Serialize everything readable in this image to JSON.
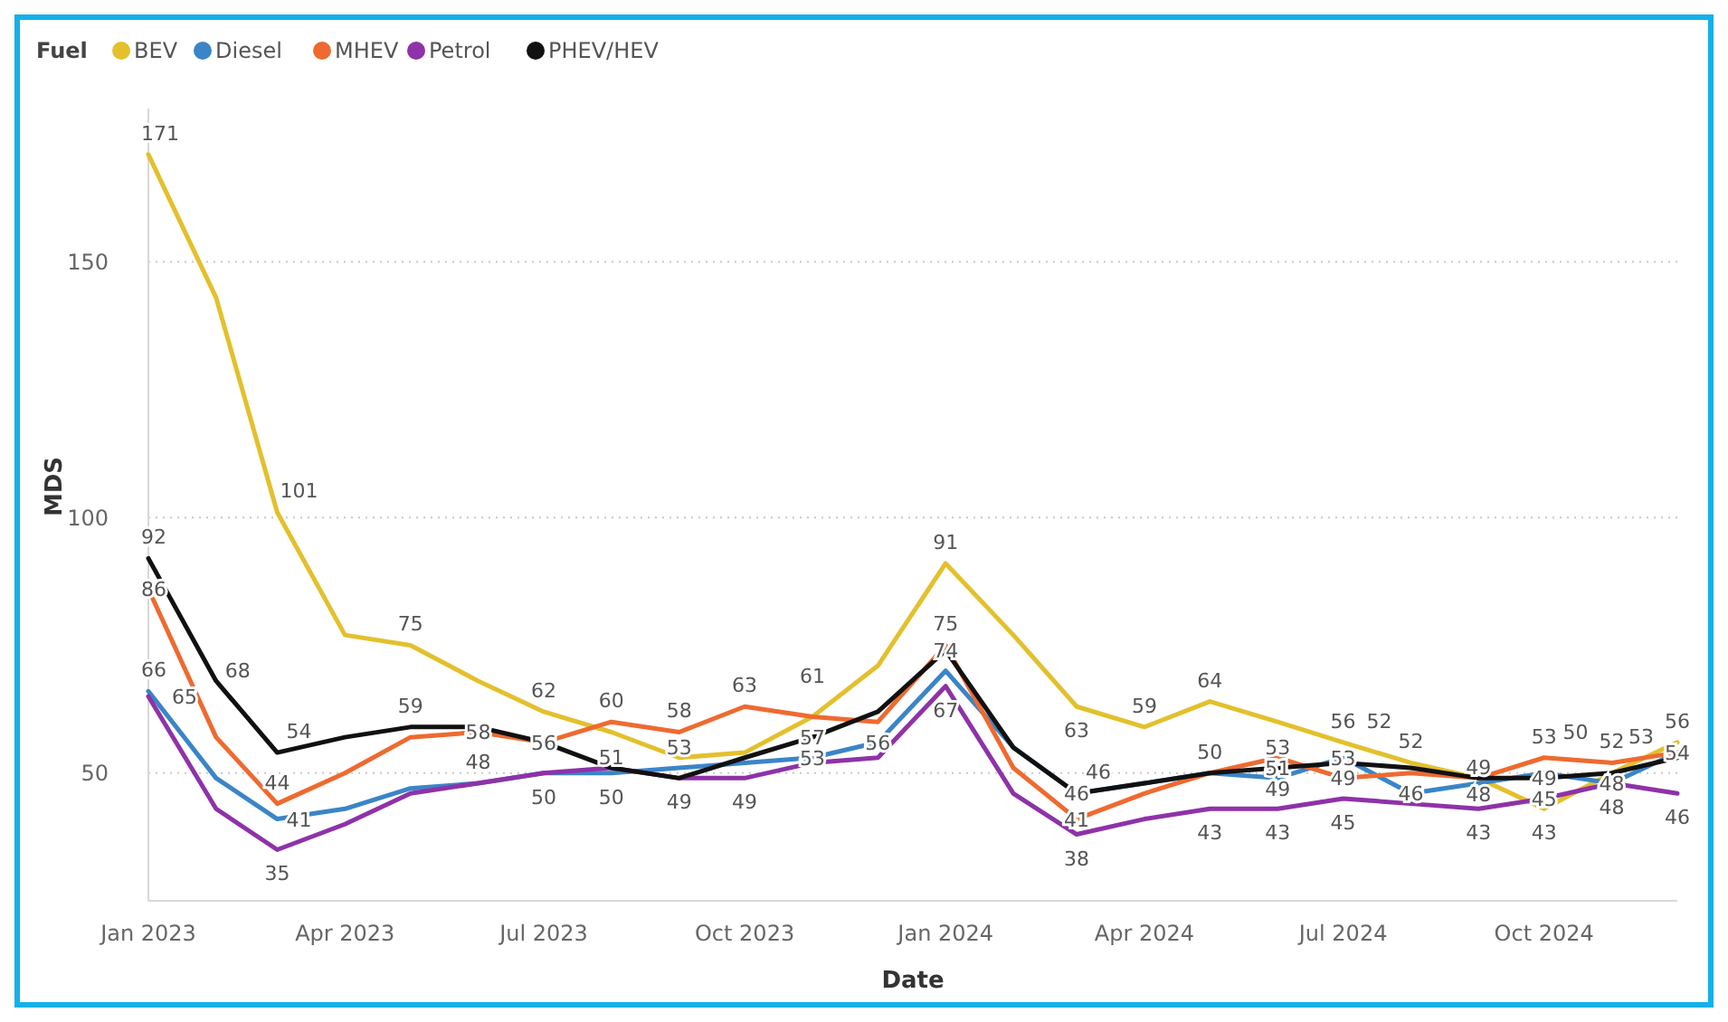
{
  "chart_data": {
    "type": "line",
    "xlabel": "Date",
    "ylabel": "MDS",
    "legend_title": "Fuel",
    "legend": "top left",
    "grid": "y",
    "x": [
      "2023-01",
      "2023-02",
      "2023-03",
      "2023-04",
      "2023-05",
      "2023-06",
      "2023-07",
      "2023-08",
      "2023-09",
      "2023-10",
      "2023-11",
      "2023-12",
      "2024-01",
      "2024-02",
      "2024-03",
      "2024-04",
      "2024-05",
      "2024-06",
      "2024-07",
      "2024-08",
      "2024-09",
      "2024-10",
      "2024-11",
      "2024-12"
    ],
    "xlim": [
      "2023-01",
      "2024-12"
    ],
    "xticks": [
      {
        "value": "2023-01",
        "label": "Jan 2023"
      },
      {
        "value": "2023-04",
        "label": "Apr 2023"
      },
      {
        "value": "2023-07",
        "label": "Jul 2023"
      },
      {
        "value": "2023-10",
        "label": "Oct 2023"
      },
      {
        "value": "2024-01",
        "label": "Jan 2024"
      },
      {
        "value": "2024-04",
        "label": "Apr 2024"
      },
      {
        "value": "2024-07",
        "label": "Jul 2024"
      },
      {
        "value": "2024-10",
        "label": "Oct 2024"
      }
    ],
    "ylim": [
      25,
      180
    ],
    "yticks": [
      50,
      100,
      150
    ],
    "series": [
      {
        "name": "BEV",
        "color": "#e3c02c",
        "values": [
          171,
          143,
          101,
          77,
          75,
          68,
          62,
          58,
          53,
          54,
          61,
          71,
          91,
          77,
          63,
          59,
          64,
          60,
          56,
          52,
          49,
          43,
          50,
          56
        ],
        "value_labels": [
          "171",
          null,
          "101",
          null,
          "75",
          null,
          "62",
          null,
          "53",
          null,
          "61",
          null,
          "91",
          null,
          "63",
          "59",
          "64",
          null,
          "56",
          "52",
          "49",
          "43",
          null,
          "56"
        ]
      },
      {
        "name": "Diesel",
        "color": "#3a85c8",
        "values": [
          66,
          49,
          41,
          43,
          47,
          48,
          50,
          50,
          51,
          52,
          53,
          56,
          70,
          55,
          46,
          48,
          50,
          49,
          53,
          46,
          48,
          50,
          48,
          54
        ],
        "value_labels": [
          "66",
          null,
          "41",
          null,
          null,
          "48",
          null,
          "50",
          null,
          null,
          "53",
          "56",
          null,
          null,
          "46",
          null,
          null,
          "49",
          "53",
          "46",
          "48",
          null,
          "48",
          "54"
        ]
      },
      {
        "name": "MHEV",
        "color": "#ee6a30",
        "values": [
          86,
          57,
          44,
          50,
          57,
          58,
          56,
          60,
          58,
          63,
          61,
          60,
          75,
          51,
          41,
          46,
          50,
          53,
          49,
          50,
          49,
          53,
          52,
          54
        ],
        "value_labels": [
          "86",
          null,
          "44",
          null,
          null,
          "58",
          "56",
          "60",
          "58",
          "63",
          null,
          null,
          "75",
          null,
          "41",
          null,
          null,
          "53",
          "49",
          null,
          null,
          "53",
          "52",
          null
        ]
      },
      {
        "name": "Petrol",
        "color": "#8e32a8",
        "values": [
          65,
          43,
          35,
          40,
          46,
          48,
          50,
          51,
          49,
          49,
          52,
          53,
          67,
          46,
          38,
          41,
          43,
          43,
          45,
          44,
          43,
          45,
          48,
          46
        ],
        "value_labels": [
          "65",
          null,
          "35",
          null,
          null,
          null,
          "50",
          null,
          null,
          "49",
          null,
          null,
          "67",
          null,
          "38",
          null,
          "43",
          "43",
          "45",
          null,
          "43",
          "45",
          "48",
          "46"
        ]
      },
      {
        "name": "PHEV/HEV",
        "color": "#111111",
        "values": [
          92,
          68,
          54,
          57,
          59,
          59,
          56,
          51,
          49,
          53,
          57,
          62,
          74,
          55,
          46,
          48,
          50,
          51,
          52,
          51,
          49,
          49,
          50,
          53
        ],
        "value_labels": [
          "92",
          "68",
          "54",
          null,
          "59",
          null,
          null,
          "51",
          "49",
          null,
          "57",
          null,
          "74",
          null,
          "46",
          null,
          "50",
          "51",
          "52",
          null,
          null,
          "49",
          "50",
          "53"
        ]
      }
    ]
  }
}
